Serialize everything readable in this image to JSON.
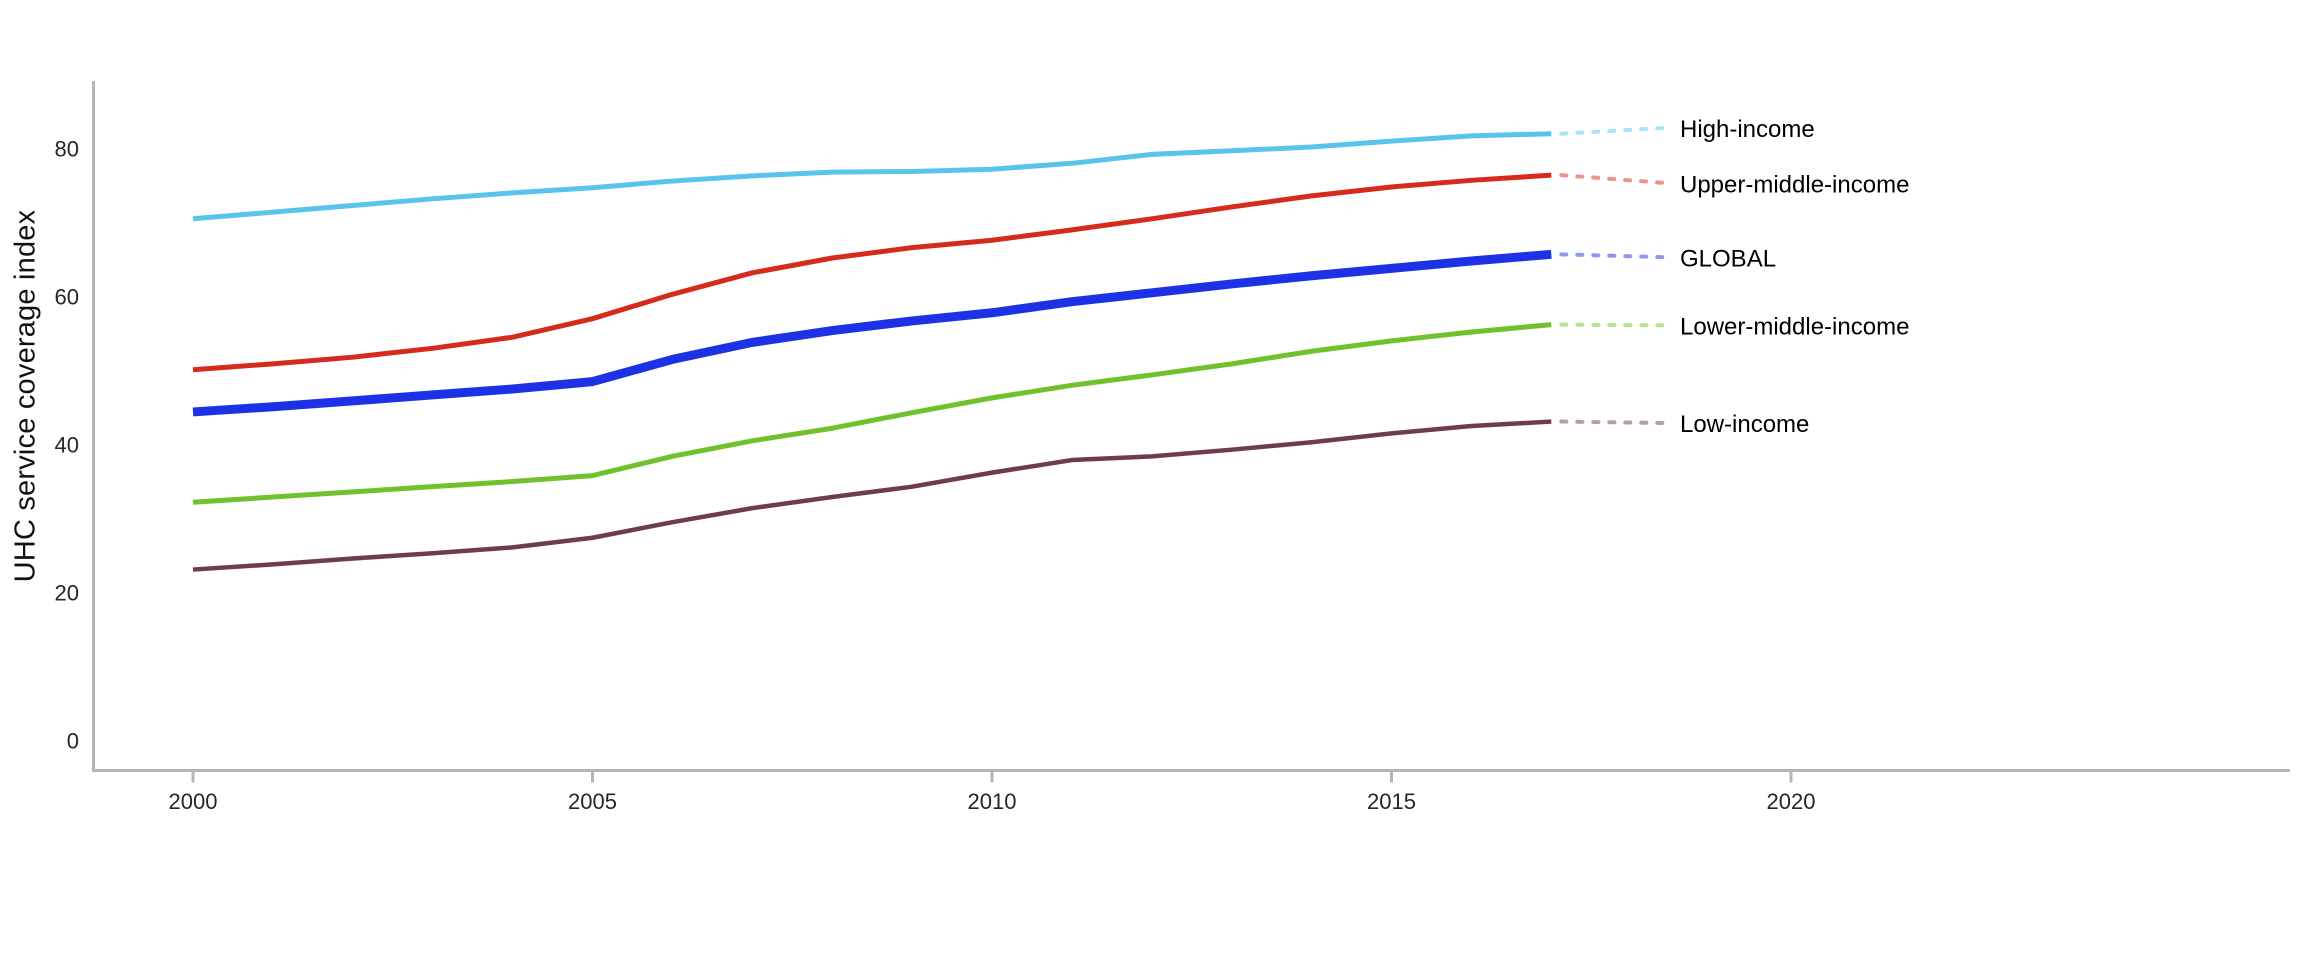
{
  "style": {
    "background": "#ffffff",
    "axis_color": "#b5b5b5",
    "tick_label_color": "#262626",
    "series_label_color": "#000000"
  },
  "chart_data": {
    "type": "line",
    "title": "",
    "xlabel": "",
    "ylabel": "UHC service coverage index",
    "grid": false,
    "legend_position": "labels at right end of lines with dotted leaders",
    "xlim": [
      1998.7,
      2026.3
    ],
    "ylim": [
      -4,
      89
    ],
    "x_ticks": [
      2000,
      2005,
      2010,
      2015,
      2020
    ],
    "y_ticks": [
      0,
      20,
      40,
      60,
      80
    ],
    "x": [
      2000,
      2001,
      2002,
      2003,
      2004,
      2005,
      2006,
      2007,
      2008,
      2009,
      2010,
      2011,
      2012,
      2013,
      2014,
      2015,
      2016,
      2017
    ],
    "series": [
      {
        "name": "High-income",
        "color": "#58c4ec",
        "line_width": 5,
        "values": [
          70.5,
          71.4,
          72.3,
          73.2,
          74.0,
          74.7,
          75.6,
          76.3,
          76.8,
          76.9,
          77.2,
          78.0,
          79.2,
          79.7,
          80.2,
          81.0,
          81.7,
          82.0
        ],
        "end_label": {
          "text": "High-income",
          "y_value": 82.8
        }
      },
      {
        "name": "Upper-middle-income",
        "color": "#d62a1c",
        "line_width": 5,
        "values": [
          50.1,
          50.9,
          51.8,
          53.0,
          54.5,
          57.0,
          60.3,
          63.2,
          65.2,
          66.6,
          67.6,
          69.0,
          70.5,
          72.1,
          73.6,
          74.8,
          75.7,
          76.4
        ],
        "end_label": {
          "text": "Upper-middle-income",
          "y_value": 75.3
        }
      },
      {
        "name": "GLOBAL",
        "color": "#1e32e5",
        "line_width": 9,
        "values": [
          44.4,
          45.1,
          45.9,
          46.7,
          47.5,
          48.5,
          51.5,
          53.8,
          55.4,
          56.7,
          57.8,
          59.3,
          60.5,
          61.7,
          62.8,
          63.8,
          64.8,
          65.7
        ],
        "end_label": {
          "text": "GLOBAL",
          "y_value": 65.3
        }
      },
      {
        "name": "Lower-middle-income",
        "color": "#71c02d",
        "line_width": 5,
        "values": [
          32.2,
          32.9,
          33.6,
          34.3,
          35.0,
          35.8,
          38.4,
          40.5,
          42.2,
          44.3,
          46.3,
          48.0,
          49.4,
          50.9,
          52.6,
          54.0,
          55.2,
          56.2
        ],
        "end_label": {
          "text": "Lower-middle-income",
          "y_value": 56.1
        }
      },
      {
        "name": "Low-income",
        "color": "#6e3c4d",
        "line_width": 4.5,
        "values": [
          23.1,
          23.8,
          24.6,
          25.3,
          26.1,
          27.4,
          29.5,
          31.4,
          32.9,
          34.3,
          36.2,
          37.9,
          38.4,
          39.3,
          40.3,
          41.5,
          42.5,
          43.1
        ],
        "end_label": {
          "text": "Low-income",
          "y_value": 42.9
        }
      }
    ]
  }
}
